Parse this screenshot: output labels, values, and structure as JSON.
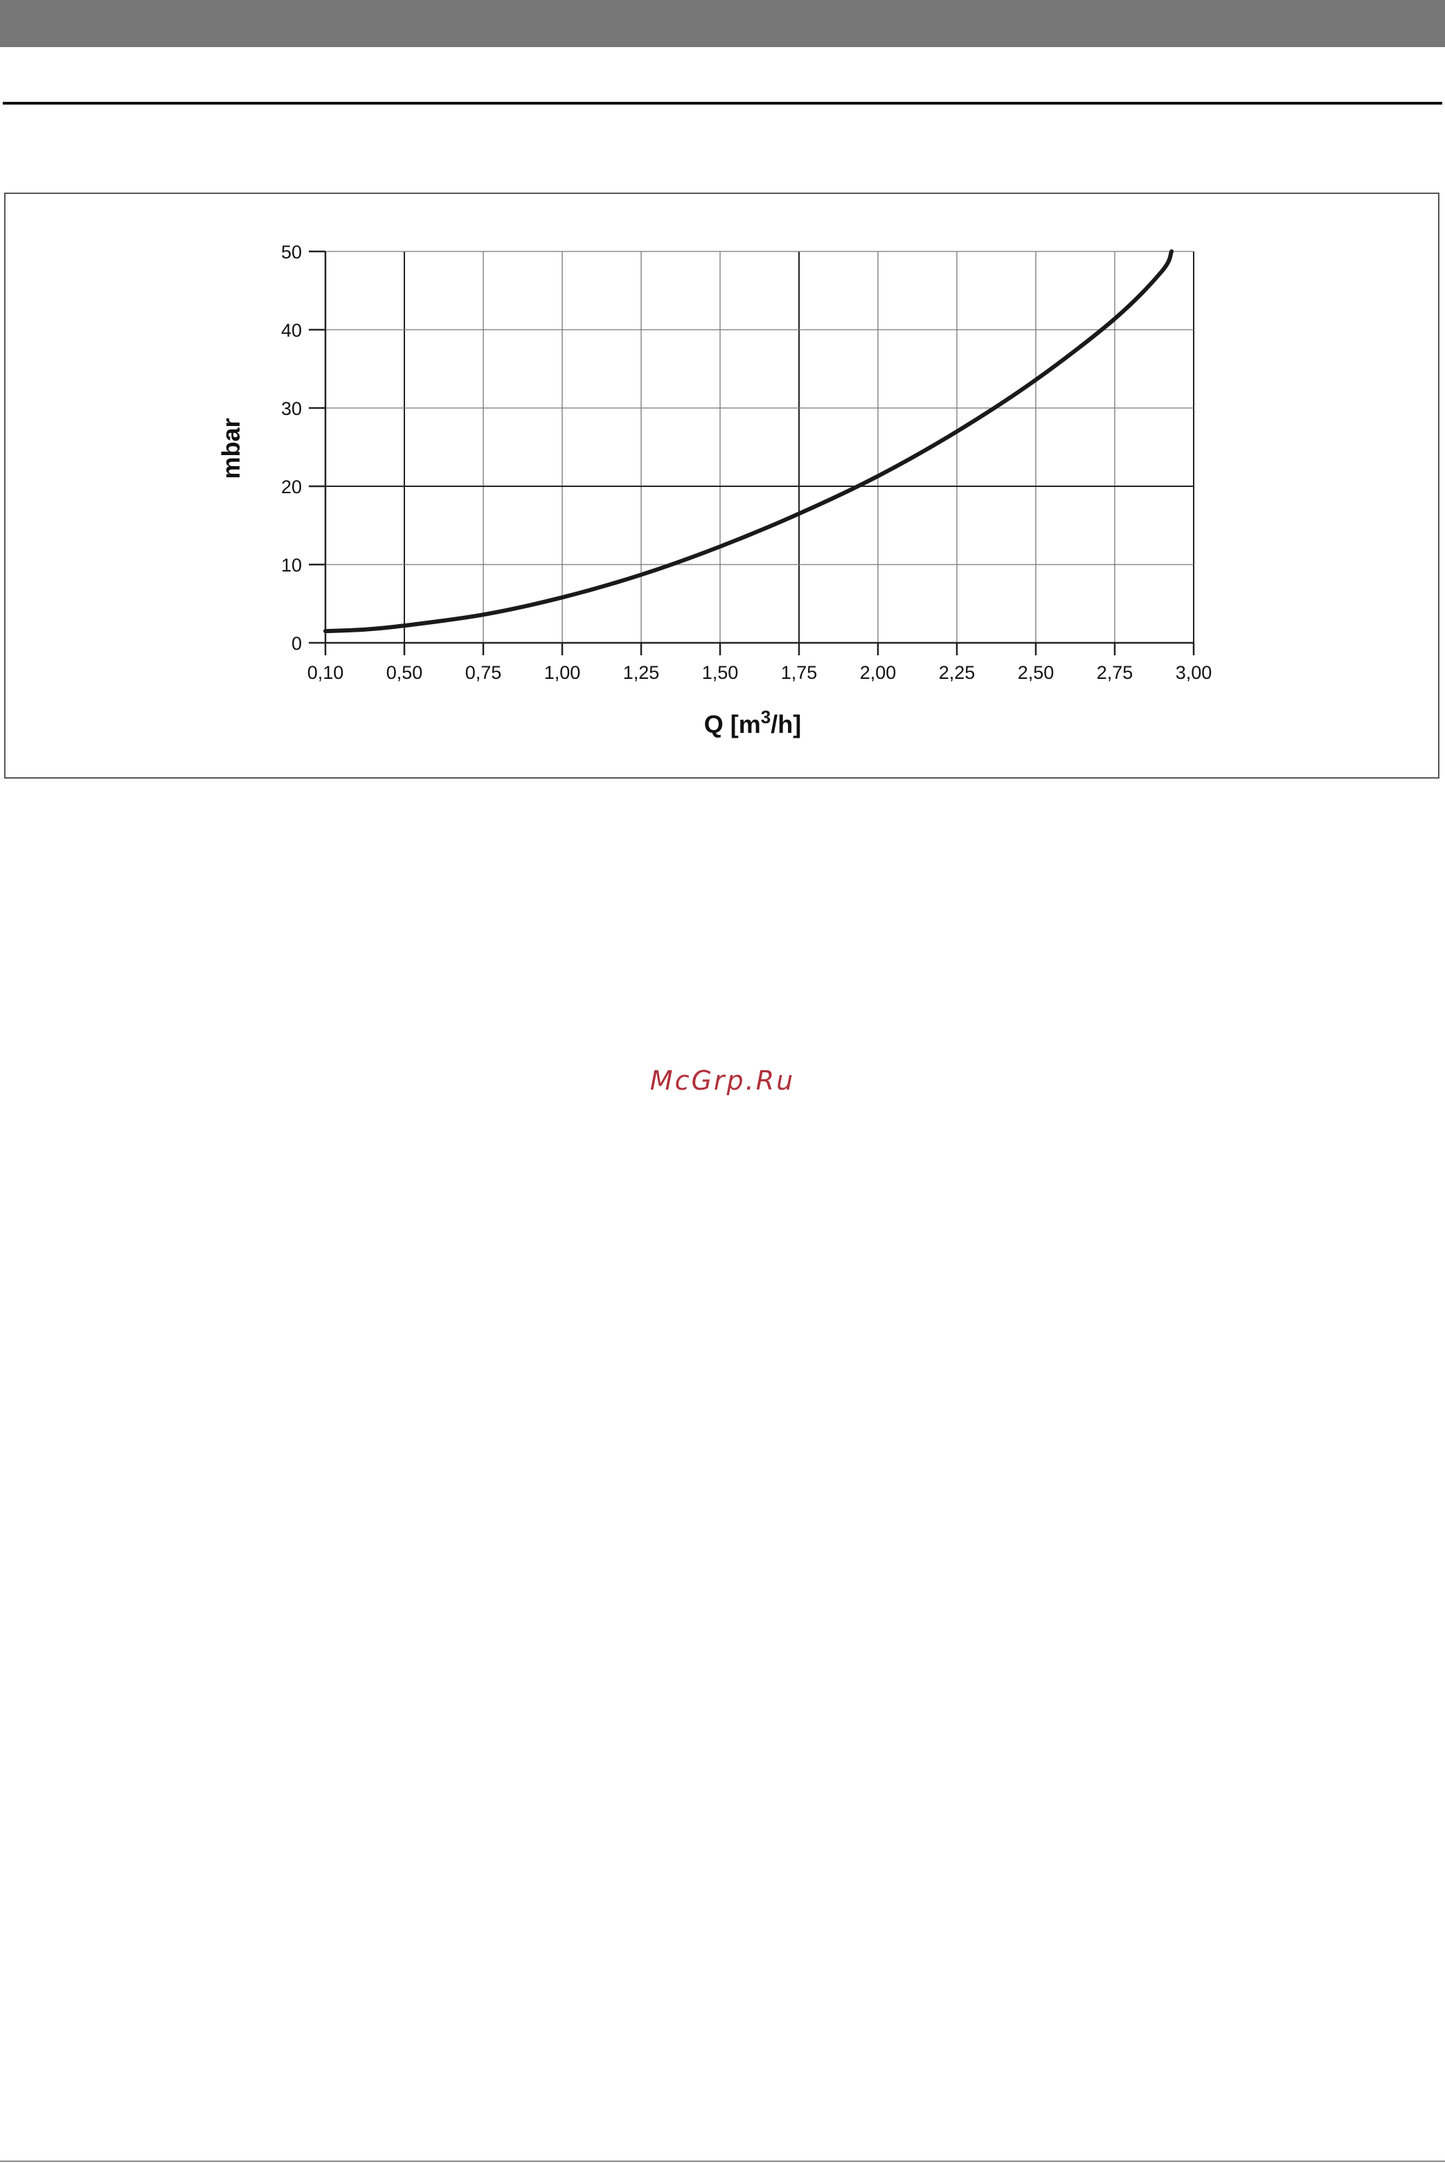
{
  "page": {
    "watermark": "McGrp.Ru"
  },
  "colors": {
    "top_bar": "#777777",
    "curve": "#1a1a1a",
    "grid": "#777777",
    "watermark": "#b0303a"
  },
  "chart_data": {
    "type": "line",
    "title": "",
    "xlabel": "Q [m",
    "xlabel_sup": "3",
    "xlabel_suffix": "/h]",
    "ylabel": "mbar",
    "x_ticks": [
      "0,10",
      "0,50",
      "0,75",
      "1,00",
      "1,25",
      "1,50",
      "1,75",
      "2,00",
      "2,25",
      "2,50",
      "2,75",
      "3,00"
    ],
    "y_ticks": [
      0,
      10,
      20,
      30,
      40,
      50
    ],
    "ylim": [
      0,
      50
    ],
    "grid": true,
    "legend": "none",
    "series": [
      {
        "x": [
          0.1,
          0.3,
          0.5,
          0.75,
          1.0,
          1.25,
          1.5,
          1.75,
          2.0,
          2.25,
          2.5,
          2.75,
          2.9,
          2.93
        ],
        "y": [
          1.5,
          1.7,
          2.2,
          3.6,
          5.8,
          8.7,
          12.3,
          16.5,
          21.3,
          27.0,
          33.6,
          41.4,
          47.5,
          50.0
        ]
      }
    ]
  }
}
